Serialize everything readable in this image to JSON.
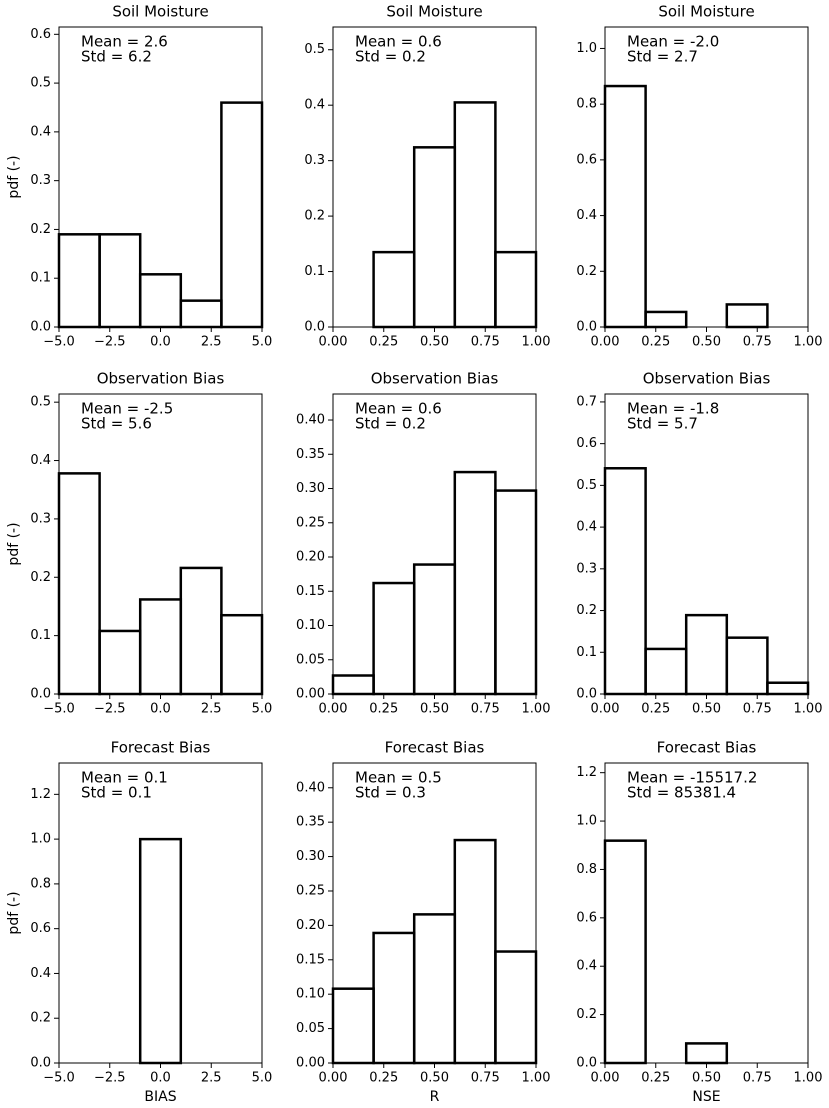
{
  "chart_data": [
    {
      "type": "histogram",
      "title": "Soil Moisture",
      "annotations": [
        "Mean = 2.6",
        "Std = 6.2"
      ],
      "ylabel": "pdf (-)",
      "bins": [
        -5,
        -3,
        -1,
        1,
        3,
        5
      ],
      "values": [
        0.19,
        0.19,
        0.108,
        0.054,
        0.46
      ],
      "xlim": [
        -5,
        5
      ],
      "xticks": [
        {
          "value": -5,
          "label": "−5.0"
        },
        {
          "value": -2.5,
          "label": "−2.5"
        },
        {
          "value": 0,
          "label": "0.0"
        },
        {
          "value": 2.5,
          "label": "2.5"
        },
        {
          "value": 5,
          "label": "5.0"
        }
      ],
      "ylim": [
        0,
        0.615
      ],
      "yticks": [
        {
          "value": 0,
          "label": "0.0"
        },
        {
          "value": 0.1,
          "label": "0.1"
        },
        {
          "value": 0.2,
          "label": "0.2"
        },
        {
          "value": 0.3,
          "label": "0.3"
        },
        {
          "value": 0.4,
          "label": "0.4"
        },
        {
          "value": 0.5,
          "label": "0.5"
        },
        {
          "value": 0.6,
          "label": "0.6"
        }
      ],
      "color": "#000000"
    },
    {
      "type": "histogram",
      "title": "Soil Moisture",
      "annotations": [
        "Mean = 0.6",
        "Std = 0.2"
      ],
      "bins": [
        0,
        0.2,
        0.4,
        0.6,
        0.8,
        1
      ],
      "values": [
        0,
        0.135,
        0.324,
        0.405,
        0.135
      ],
      "xlim": [
        0,
        1
      ],
      "xticks": [
        {
          "value": 0,
          "label": "0.00"
        },
        {
          "value": 0.25,
          "label": "0.25"
        },
        {
          "value": 0.5,
          "label": "0.50"
        },
        {
          "value": 0.75,
          "label": "0.75"
        },
        {
          "value": 1,
          "label": "1.00"
        }
      ],
      "ylim": [
        0,
        0.541
      ],
      "yticks": [
        {
          "value": 0,
          "label": "0.0"
        },
        {
          "value": 0.1,
          "label": "0.1"
        },
        {
          "value": 0.2,
          "label": "0.2"
        },
        {
          "value": 0.3,
          "label": "0.3"
        },
        {
          "value": 0.4,
          "label": "0.4"
        },
        {
          "value": 0.5,
          "label": "0.5"
        }
      ],
      "color": "#000000"
    },
    {
      "type": "histogram",
      "title": "Soil Moisture",
      "annotations": [
        "Mean = -2.0",
        "Std = 2.7"
      ],
      "bins": [
        0,
        0.2,
        0.4,
        0.6,
        0.8,
        1
      ],
      "values": [
        0.865,
        0.054,
        0,
        0.081,
        0
      ],
      "xlim": [
        0,
        1
      ],
      "xticks": [
        {
          "value": 0,
          "label": "0.00"
        },
        {
          "value": 0.25,
          "label": "0.25"
        },
        {
          "value": 0.5,
          "label": "0.50"
        },
        {
          "value": 0.75,
          "label": "0.75"
        },
        {
          "value": 1,
          "label": "1.00"
        }
      ],
      "ylim": [
        0,
        1.077
      ],
      "yticks": [
        {
          "value": 0,
          "label": "0.0"
        },
        {
          "value": 0.2,
          "label": "0.2"
        },
        {
          "value": 0.4,
          "label": "0.4"
        },
        {
          "value": 0.6,
          "label": "0.6"
        },
        {
          "value": 0.8,
          "label": "0.8"
        },
        {
          "value": 1,
          "label": "1.0"
        }
      ],
      "color": "#000000"
    },
    {
      "type": "histogram",
      "title": "Observation Bias",
      "annotations": [
        "Mean = -2.5",
        "Std = 5.6"
      ],
      "ylabel": "pdf (-)",
      "bins": [
        -5,
        -3,
        -1,
        1,
        3,
        5
      ],
      "values": [
        0.378,
        0.108,
        0.162,
        0.216,
        0.135
      ],
      "xlim": [
        -5,
        5
      ],
      "xticks": [
        {
          "value": -5,
          "label": "−5.0"
        },
        {
          "value": -2.5,
          "label": "−2.5"
        },
        {
          "value": 0,
          "label": "0.0"
        },
        {
          "value": 2.5,
          "label": "2.5"
        },
        {
          "value": 5,
          "label": "5.0"
        }
      ],
      "ylim": [
        0,
        0.514
      ],
      "yticks": [
        {
          "value": 0,
          "label": "0.0"
        },
        {
          "value": 0.1,
          "label": "0.1"
        },
        {
          "value": 0.2,
          "label": "0.2"
        },
        {
          "value": 0.3,
          "label": "0.3"
        },
        {
          "value": 0.4,
          "label": "0.4"
        },
        {
          "value": 0.5,
          "label": "0.5"
        }
      ],
      "color": "#000000"
    },
    {
      "type": "histogram",
      "title": "Observation Bias",
      "annotations": [
        "Mean = 0.6",
        "Std = 0.2"
      ],
      "bins": [
        0,
        0.2,
        0.4,
        0.6,
        0.8,
        1
      ],
      "values": [
        0.027,
        0.162,
        0.189,
        0.324,
        0.297
      ],
      "xlim": [
        0,
        1
      ],
      "xticks": [
        {
          "value": 0,
          "label": "0.00"
        },
        {
          "value": 0.25,
          "label": "0.25"
        },
        {
          "value": 0.5,
          "label": "0.50"
        },
        {
          "value": 0.75,
          "label": "0.75"
        },
        {
          "value": 1,
          "label": "1.00"
        }
      ],
      "ylim": [
        0,
        0.438
      ],
      "yticks": [
        {
          "value": 0,
          "label": "0.00"
        },
        {
          "value": 0.05,
          "label": "0.05"
        },
        {
          "value": 0.1,
          "label": "0.10"
        },
        {
          "value": 0.15,
          "label": "0.15"
        },
        {
          "value": 0.2,
          "label": "0.20"
        },
        {
          "value": 0.25,
          "label": "0.25"
        },
        {
          "value": 0.3,
          "label": "0.30"
        },
        {
          "value": 0.35,
          "label": "0.35"
        },
        {
          "value": 0.4,
          "label": "0.40"
        }
      ],
      "color": "#000000"
    },
    {
      "type": "histogram",
      "title": "Observation Bias",
      "annotations": [
        "Mean = -1.8",
        "Std = 5.7"
      ],
      "bins": [
        0,
        0.2,
        0.4,
        0.6,
        0.8,
        1
      ],
      "values": [
        0.541,
        0.108,
        0.189,
        0.135,
        0.027
      ],
      "xlim": [
        0,
        1
      ],
      "xticks": [
        {
          "value": 0,
          "label": "0.00"
        },
        {
          "value": 0.25,
          "label": "0.25"
        },
        {
          "value": 0.5,
          "label": "0.50"
        },
        {
          "value": 0.75,
          "label": "0.75"
        },
        {
          "value": 1,
          "label": "1.00"
        }
      ],
      "ylim": [
        0,
        0.719
      ],
      "yticks": [
        {
          "value": 0,
          "label": "0.0"
        },
        {
          "value": 0.1,
          "label": "0.1"
        },
        {
          "value": 0.2,
          "label": "0.2"
        },
        {
          "value": 0.3,
          "label": "0.3"
        },
        {
          "value": 0.4,
          "label": "0.4"
        },
        {
          "value": 0.5,
          "label": "0.5"
        },
        {
          "value": 0.6,
          "label": "0.6"
        },
        {
          "value": 0.7,
          "label": "0.7"
        }
      ],
      "color": "#000000"
    },
    {
      "type": "histogram",
      "title": "Forecast Bias",
      "annotations": [
        "Mean = 0.1",
        "Std = 0.1"
      ],
      "ylabel": "pdf (-)",
      "xlabel": "BIAS",
      "bins": [
        -5,
        -3,
        -1,
        1,
        3,
        5
      ],
      "values": [
        0,
        0,
        1.0,
        0,
        0
      ],
      "xlim": [
        -5,
        5
      ],
      "xticks": [
        {
          "value": -5,
          "label": "−5.0"
        },
        {
          "value": -2.5,
          "label": "−2.5"
        },
        {
          "value": 0,
          "label": "0.0"
        },
        {
          "value": 2.5,
          "label": "2.5"
        },
        {
          "value": 5,
          "label": "5.0"
        }
      ],
      "ylim": [
        0,
        1.34
      ],
      "yticks": [
        {
          "value": 0,
          "label": "0.0"
        },
        {
          "value": 0.2,
          "label": "0.2"
        },
        {
          "value": 0.4,
          "label": "0.4"
        },
        {
          "value": 0.6,
          "label": "0.6"
        },
        {
          "value": 0.8,
          "label": "0.8"
        },
        {
          "value": 1,
          "label": "1.0"
        },
        {
          "value": 1.2,
          "label": "1.2"
        }
      ],
      "color": "#000000"
    },
    {
      "type": "histogram",
      "title": "Forecast Bias",
      "annotations": [
        "Mean = 0.5",
        "Std = 0.3"
      ],
      "xlabel": "R",
      "bins": [
        0,
        0.2,
        0.4,
        0.6,
        0.8,
        1
      ],
      "values": [
        0.108,
        0.189,
        0.216,
        0.324,
        0.162
      ],
      "xlim": [
        0,
        1
      ],
      "xticks": [
        {
          "value": 0,
          "label": "0.00"
        },
        {
          "value": 0.25,
          "label": "0.25"
        },
        {
          "value": 0.5,
          "label": "0.50"
        },
        {
          "value": 0.75,
          "label": "0.75"
        },
        {
          "value": 1,
          "label": "1.00"
        }
      ],
      "ylim": [
        0,
        0.436
      ],
      "yticks": [
        {
          "value": 0,
          "label": "0.00"
        },
        {
          "value": 0.05,
          "label": "0.05"
        },
        {
          "value": 0.1,
          "label": "0.10"
        },
        {
          "value": 0.15,
          "label": "0.15"
        },
        {
          "value": 0.2,
          "label": "0.20"
        },
        {
          "value": 0.25,
          "label": "0.25"
        },
        {
          "value": 0.3,
          "label": "0.30"
        },
        {
          "value": 0.35,
          "label": "0.35"
        },
        {
          "value": 0.4,
          "label": "0.40"
        }
      ],
      "color": "#000000"
    },
    {
      "type": "histogram",
      "title": "Forecast Bias",
      "annotations": [
        "Mean = -15517.2",
        "Std = 85381.4"
      ],
      "xlabel": "NSE",
      "bins": [
        0,
        0.2,
        0.4,
        0.6,
        0.8,
        1
      ],
      "values": [
        0.919,
        0,
        0.081,
        0,
        0
      ],
      "xlim": [
        0,
        1
      ],
      "xticks": [
        {
          "value": 0,
          "label": "0.00"
        },
        {
          "value": 0.25,
          "label": "0.25"
        },
        {
          "value": 0.5,
          "label": "0.50"
        },
        {
          "value": 0.75,
          "label": "0.75"
        },
        {
          "value": 1,
          "label": "1.00"
        }
      ],
      "ylim": [
        0,
        1.24
      ],
      "yticks": [
        {
          "value": 0,
          "label": "0.0"
        },
        {
          "value": 0.2,
          "label": "0.2"
        },
        {
          "value": 0.4,
          "label": "0.4"
        },
        {
          "value": 0.6,
          "label": "0.6"
        },
        {
          "value": 0.8,
          "label": "0.8"
        },
        {
          "value": 1,
          "label": "1.0"
        },
        {
          "value": 1.2,
          "label": "1.2"
        }
      ],
      "color": "#000000"
    }
  ]
}
